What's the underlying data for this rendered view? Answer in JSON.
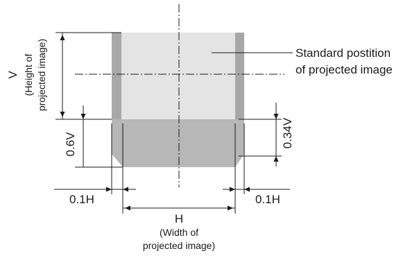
{
  "labels": {
    "standard_line1": "Standard postition",
    "standard_line2": "of projected image",
    "v_main": "V",
    "v_sub1": "(Height of",
    "v_sub2": "projected image)",
    "shift_06v": "0.6V",
    "shift_034v": "0.34V",
    "left_01h": "0.1H",
    "right_01h": "0.1H",
    "h_main": "H",
    "h_sub1": "(Width of",
    "h_sub2": "projected image)"
  },
  "colors": {
    "standard_image": "#e4e4e4",
    "shifted_image": "#b7b7b7",
    "side_bands": "#a8a8a8",
    "lines": "#1a1a1a"
  }
}
